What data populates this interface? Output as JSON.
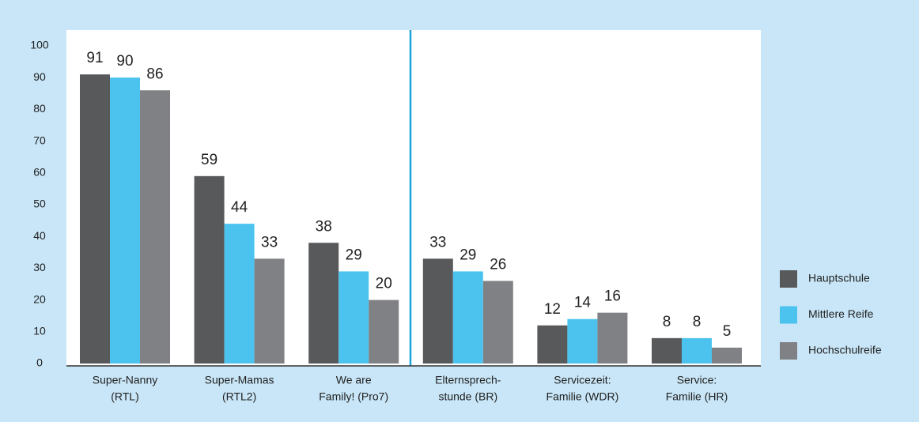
{
  "chart_data": {
    "type": "bar",
    "categories": [
      [
        "Super-Nanny",
        "(RTL)"
      ],
      [
        "Super-Mamas",
        "(RTL2)"
      ],
      [
        "We are",
        "Family! (Pro7)"
      ],
      [
        "Elternsprech-",
        "stunde (BR)"
      ],
      [
        "Servicezeit:",
        "Familie (WDR)"
      ],
      [
        "Service:",
        "Familie (HR)"
      ]
    ],
    "series": [
      {
        "name": "Hauptschule",
        "color": "#58595b",
        "values": [
          91,
          59,
          38,
          33,
          12,
          8
        ]
      },
      {
        "name": "Mittlere Reife",
        "color": "#4cc3ef",
        "values": [
          90,
          44,
          29,
          29,
          14,
          8
        ]
      },
      {
        "name": "Hochschulreife",
        "color": "#808184",
        "values": [
          86,
          33,
          20,
          26,
          16,
          5
        ]
      }
    ],
    "ylim": [
      0,
      100
    ],
    "yticks": [
      0,
      10,
      20,
      30,
      40,
      50,
      60,
      70,
      80,
      90,
      100
    ],
    "grid": false,
    "legend": "right"
  }
}
